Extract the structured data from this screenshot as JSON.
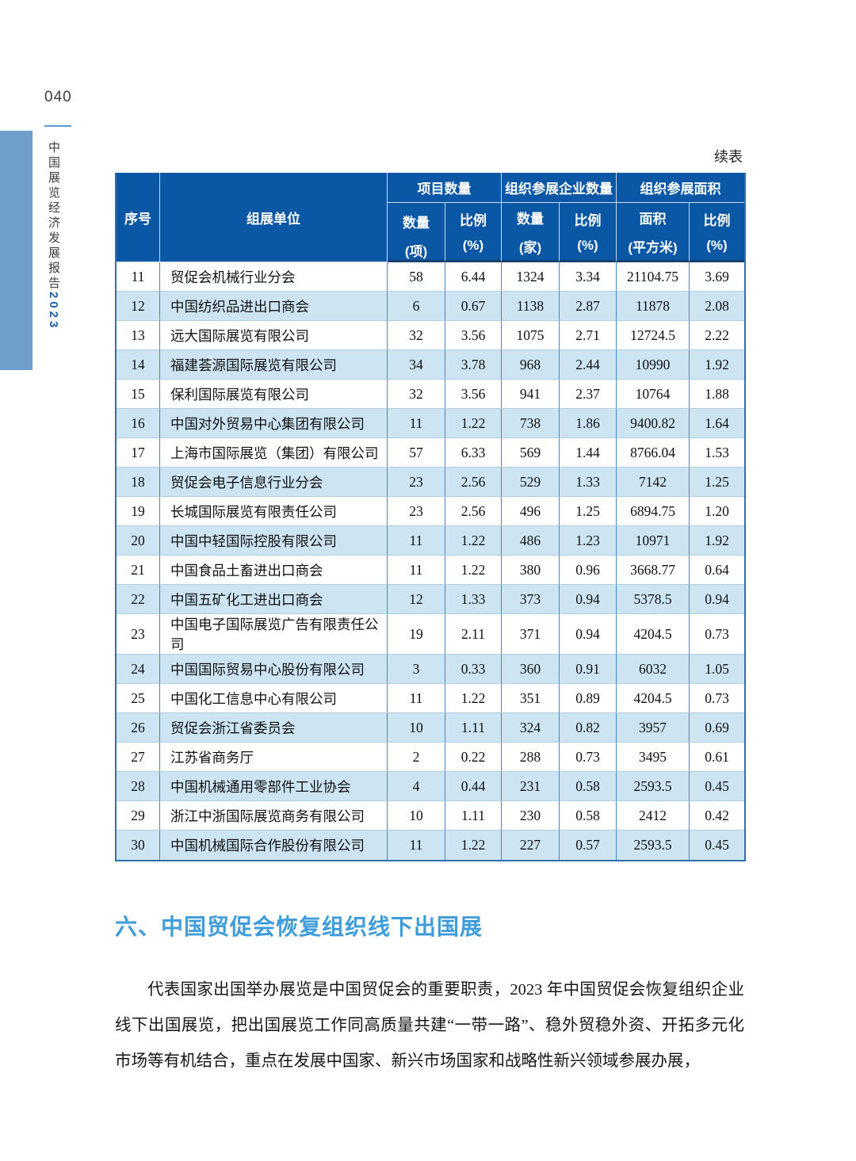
{
  "page": {
    "page_number": "040",
    "continued_label": "续表"
  },
  "sidebar": {
    "title": "中国展览经济发展报告",
    "year": "2023"
  },
  "table": {
    "headers": {
      "index": "序号",
      "organizer": "组展单位",
      "groups": [
        {
          "label": "项目数量"
        },
        {
          "label": "组织参展企业数量"
        },
        {
          "label": "组织参展面积"
        }
      ],
      "subheaders": [
        {
          "label": "数量",
          "unit": "(项)"
        },
        {
          "label": "比例",
          "unit": "(%)"
        },
        {
          "label": "数量",
          "unit": "(家)"
        },
        {
          "label": "比例",
          "unit": "(%)"
        },
        {
          "label": "面积",
          "unit": "(平方米)"
        },
        {
          "label": "比例",
          "unit": "(%)"
        }
      ]
    },
    "rows": [
      [
        "11",
        "贸促会机械行业分会",
        "58",
        "6.44",
        "1324",
        "3.34",
        "21104.75",
        "3.69"
      ],
      [
        "12",
        "中国纺织品进出口商会",
        "6",
        "0.67",
        "1138",
        "2.87",
        "11878",
        "2.08"
      ],
      [
        "13",
        "远大国际展览有限公司",
        "32",
        "3.56",
        "1075",
        "2.71",
        "12724.5",
        "2.22"
      ],
      [
        "14",
        "福建荟源国际展览有限公司",
        "34",
        "3.78",
        "968",
        "2.44",
        "10990",
        "1.92"
      ],
      [
        "15",
        "保利国际展览有限公司",
        "32",
        "3.56",
        "941",
        "2.37",
        "10764",
        "1.88"
      ],
      [
        "16",
        "中国对外贸易中心集团有限公司",
        "11",
        "1.22",
        "738",
        "1.86",
        "9400.82",
        "1.64"
      ],
      [
        "17",
        "上海市国际展览（集团）有限公司",
        "57",
        "6.33",
        "569",
        "1.44",
        "8766.04",
        "1.53"
      ],
      [
        "18",
        "贸促会电子信息行业分会",
        "23",
        "2.56",
        "529",
        "1.33",
        "7142",
        "1.25"
      ],
      [
        "19",
        "长城国际展览有限责任公司",
        "23",
        "2.56",
        "496",
        "1.25",
        "6894.75",
        "1.20"
      ],
      [
        "20",
        "中国中轻国际控股有限公司",
        "11",
        "1.22",
        "486",
        "1.23",
        "10971",
        "1.92"
      ],
      [
        "21",
        "中国食品土畜进出口商会",
        "11",
        "1.22",
        "380",
        "0.96",
        "3668.77",
        "0.64"
      ],
      [
        "22",
        "中国五矿化工进出口商会",
        "12",
        "1.33",
        "373",
        "0.94",
        "5378.5",
        "0.94"
      ],
      [
        "23",
        "中国电子国际展览广告有限责任公司",
        "19",
        "2.11",
        "371",
        "0.94",
        "4204.5",
        "0.73"
      ],
      [
        "24",
        "中国国际贸易中心股份有限公司",
        "3",
        "0.33",
        "360",
        "0.91",
        "6032",
        "1.05"
      ],
      [
        "25",
        "中国化工信息中心有限公司",
        "11",
        "1.22",
        "351",
        "0.89",
        "4204.5",
        "0.73"
      ],
      [
        "26",
        "贸促会浙江省委员会",
        "10",
        "1.11",
        "324",
        "0.82",
        "3957",
        "0.69"
      ],
      [
        "27",
        "江苏省商务厅",
        "2",
        "0.22",
        "288",
        "0.73",
        "3495",
        "0.61"
      ],
      [
        "28",
        "中国机械通用零部件工业协会",
        "4",
        "0.44",
        "231",
        "0.58",
        "2593.5",
        "0.45"
      ],
      [
        "29",
        "浙江中浙国际展览商务有限公司",
        "10",
        "1.11",
        "230",
        "0.58",
        "2412",
        "0.42"
      ],
      [
        "30",
        "中国机械国际合作股份有限公司",
        "11",
        "1.22",
        "227",
        "0.57",
        "2593.5",
        "0.45"
      ]
    ]
  },
  "section": {
    "heading": "六、中国贸促会恢复组织线下出国展",
    "paragraph": "代表国家出国举办展览是中国贸促会的重要职责，2023 年中国贸促会恢复组织企业线下出国展览，把出国展览工作同高质量共建“一带一路”、稳外贸稳外资、开拓多元化市场等有机结合，重点在发展中国家、新兴市场国家和战略性新兴领域参展办展，"
  },
  "colors": {
    "header_bg": "#0a57a5",
    "row_alt": "#cde5f3",
    "v_border": "#4a86c0",
    "h_border": "#abd0e6",
    "outer_border": "#2e6fb2",
    "heading_color": "#3f9cda",
    "stripe_color": "#6f9ecb",
    "accent_line": "#5b9bd5",
    "year_blue": "#1e5fa9"
  }
}
